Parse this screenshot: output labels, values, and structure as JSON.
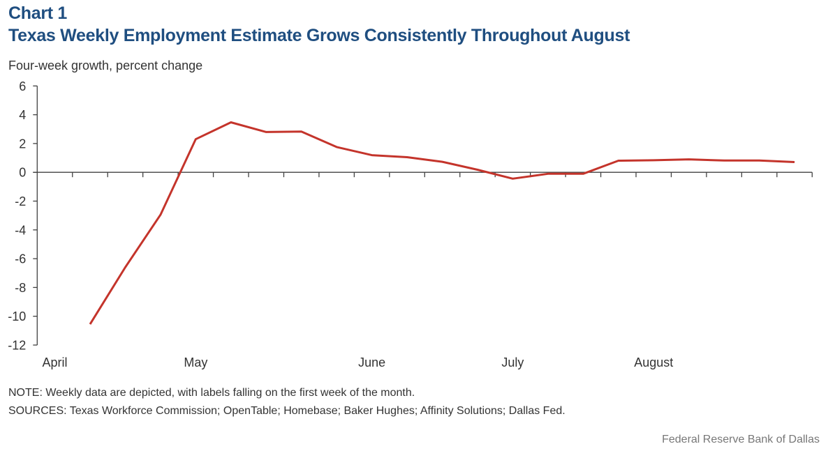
{
  "chart_data": {
    "type": "line",
    "title_prefix": "Chart 1",
    "title": "Texas Weekly Employment Estimate Grows Consistently Throughout August",
    "ylabel": "Four-week growth, percent change",
    "xlabel": "",
    "ylim": [
      -12,
      6
    ],
    "yticks": [
      6,
      4,
      2,
      0,
      -2,
      -4,
      -6,
      -8,
      -10,
      -12
    ],
    "ytick_labels": [
      "6",
      "4",
      "2",
      "0",
      "-2",
      "-4",
      "-6",
      "-8",
      "-10",
      "-12"
    ],
    "num_weeks": 22,
    "month_labels": [
      {
        "label": "April",
        "week_index": 0
      },
      {
        "label": "May",
        "week_index": 4
      },
      {
        "label": "June",
        "week_index": 9
      },
      {
        "label": "July",
        "week_index": 13
      },
      {
        "label": "August",
        "week_index": 17
      }
    ],
    "grid": false,
    "legend": "none",
    "series": [
      {
        "name": "Texas weekly employment estimate, four-week growth",
        "color": "#c4342b",
        "values": [
          null,
          -10.55,
          -6.6,
          -2.95,
          2.3,
          3.47,
          2.8,
          2.83,
          1.76,
          1.19,
          1.05,
          0.73,
          0.18,
          -0.44,
          -0.1,
          -0.1,
          0.81,
          0.84,
          0.9,
          0.82,
          0.82,
          0.71
        ]
      }
    ],
    "note": "NOTE: Weekly data are depicted, with labels falling on the first week of the month.",
    "sources": "SOURCES: Texas Workforce Commission;  OpenTable; Homebase;  Baker Hughes;  Affinity Solutions; Dallas Fed.",
    "credit": "Federal Reserve Bank of Dallas"
  }
}
